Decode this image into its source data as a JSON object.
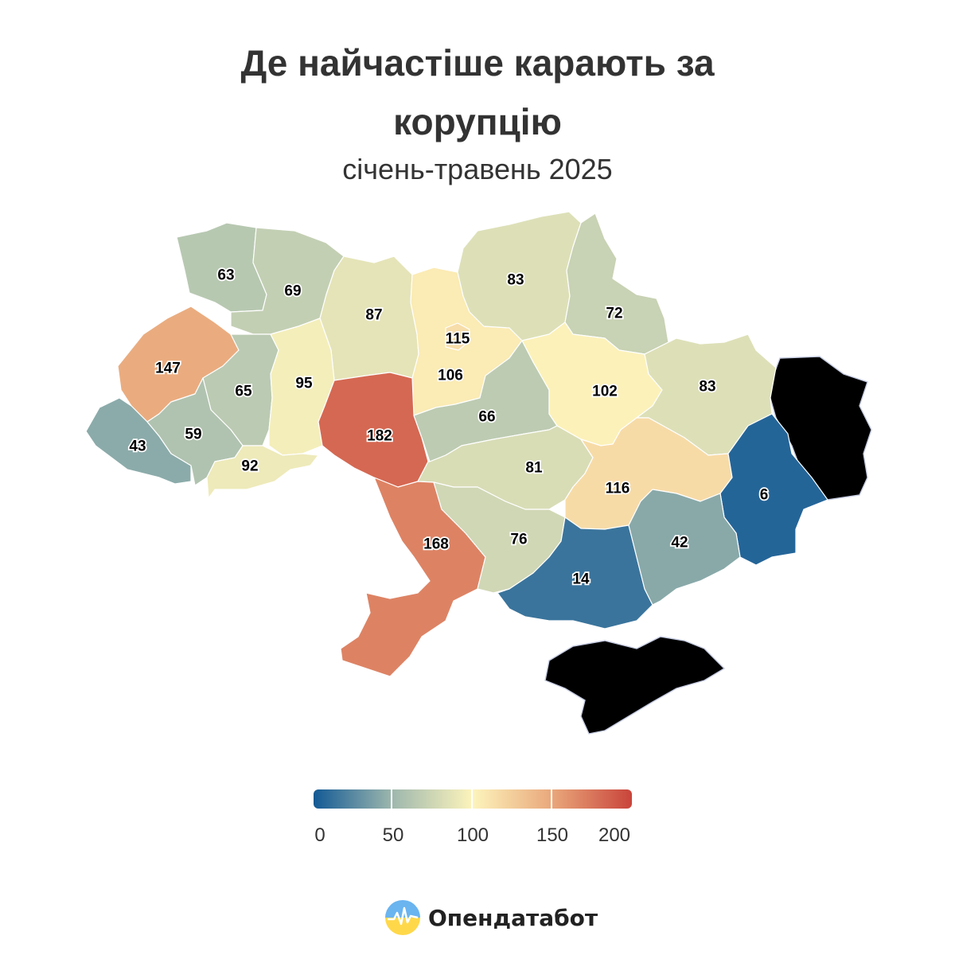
{
  "title_lines": [
    "Де найчастіше карають за",
    "корупцію"
  ],
  "subtitle": "січень-травень 2025",
  "brand": {
    "name": "Опендатабот",
    "logo_icon": "opendatabot-logo-icon"
  },
  "legend": {
    "min": 0,
    "max": 200,
    "ticks": [
      "0",
      "50",
      "100",
      "150",
      "200"
    ],
    "colors": [
      "#135a95",
      "#9fb8ad",
      "#fdf4bc",
      "#e9a77b",
      "#c9443b"
    ]
  },
  "colors": {
    "occupied_fill": "#f3f4f8",
    "occupied_stroke": "#c5cbe0"
  },
  "regions": [
    {
      "id": "volyn",
      "value": 63
    },
    {
      "id": "rivne",
      "value": 69
    },
    {
      "id": "zhytomyr",
      "value": 87
    },
    {
      "id": "kyiv-oblast",
      "value": 106
    },
    {
      "id": "kyiv-city",
      "value": 115
    },
    {
      "id": "chernihiv",
      "value": 83
    },
    {
      "id": "sumy",
      "value": 72
    },
    {
      "id": "lviv",
      "value": 147
    },
    {
      "id": "ternopil",
      "value": 65
    },
    {
      "id": "khmelnytskyi",
      "value": 95
    },
    {
      "id": "vinnytsia",
      "value": 182
    },
    {
      "id": "cherkasy",
      "value": 66
    },
    {
      "id": "poltava",
      "value": 102
    },
    {
      "id": "kharkiv",
      "value": 83
    },
    {
      "id": "zakarpattia",
      "value": 43
    },
    {
      "id": "ivano-frankivsk",
      "value": 59
    },
    {
      "id": "chernivtsi",
      "value": 92
    },
    {
      "id": "kirovohrad",
      "value": 81
    },
    {
      "id": "dnipropetrovsk",
      "value": 116
    },
    {
      "id": "donetsk",
      "value": 6
    },
    {
      "id": "odesa",
      "value": 168
    },
    {
      "id": "mykolaiv",
      "value": 76
    },
    {
      "id": "kherson",
      "value": 14
    },
    {
      "id": "zaporizhzhia",
      "value": 42
    }
  ]
}
